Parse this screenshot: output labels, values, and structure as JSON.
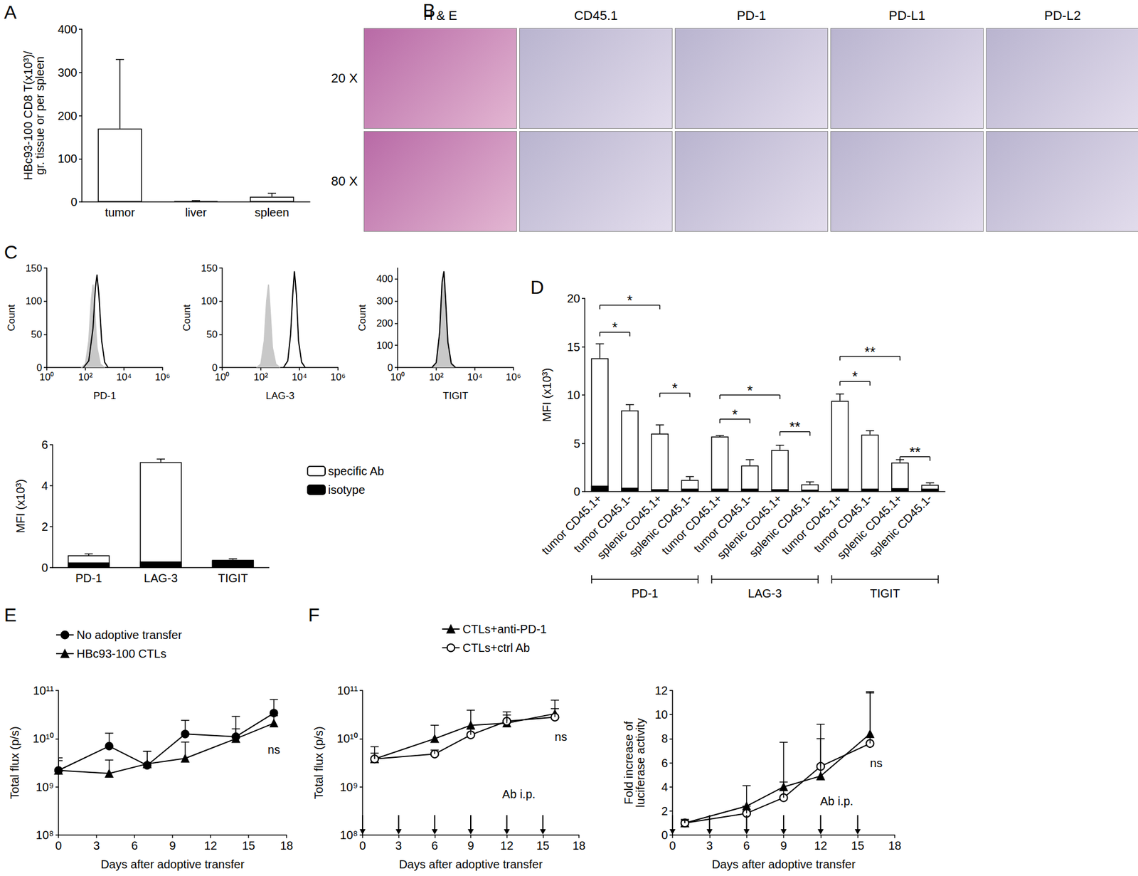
{
  "chart_data": [
    {
      "type": "bar",
      "title": "A",
      "ylabel": "HBc93-100 CD8 T(x10³)/\ngr. tissue or per spleen",
      "categories": [
        "tumor",
        "liver",
        "spleen"
      ],
      "values": [
        170,
        2,
        12
      ],
      "error": [
        160,
        1,
        8
      ],
      "color": "#ffffff",
      "ylim": [
        0,
        400
      ],
      "yticks": [
        0,
        100,
        200,
        300,
        400
      ]
    },
    {
      "type": "line",
      "title": "C",
      "log": "x",
      "xlabel": "PD-1",
      "ylabel": "Count",
      "xlim": [
        1,
        1000000
      ],
      "xticks": [
        {
          "value": 1,
          "label": "10⁰"
        },
        {
          "value": 100,
          "label": "10²"
        },
        {
          "value": 10000,
          "label": "10⁴"
        },
        {
          "value": 1000000,
          "label": "10⁶"
        }
      ],
      "ylim": [
        0,
        150
      ],
      "yticks": [
        0,
        50,
        100,
        150
      ],
      "series": [
        {
          "type": "area",
          "color": "#c8c8c8",
          "x": [
            60,
            100,
            150,
            200,
            250,
            300,
            400,
            600,
            1000
          ],
          "values": [
            0,
            5,
            40,
            100,
            125,
            90,
            30,
            5,
            0
          ]
        },
        {
          "type": "line",
          "color": "#000000",
          "x": [
            80,
            150,
            250,
            330,
            400,
            500,
            700,
            1000,
            1500
          ],
          "values": [
            0,
            10,
            60,
            120,
            140,
            110,
            40,
            8,
            0
          ]
        }
      ]
    },
    {
      "type": "line",
      "log": "x",
      "xlabel": "LAG-3",
      "ylabel": "Count",
      "xlim": [
        1,
        1000000
      ],
      "xticks": [
        {
          "value": 1,
          "label": "10⁰"
        },
        {
          "value": 100,
          "label": "10²"
        },
        {
          "value": 10000,
          "label": "10⁴"
        },
        {
          "value": 1000000,
          "label": "10⁶"
        }
      ],
      "ylim": [
        0,
        150
      ],
      "yticks": [
        0,
        50,
        100,
        150
      ],
      "series": [
        {
          "type": "area",
          "color": "#c8c8c8",
          "x": [
            60,
            100,
            150,
            200,
            250,
            300,
            400,
            600,
            1000
          ],
          "values": [
            0,
            5,
            40,
            100,
            125,
            90,
            30,
            5,
            0
          ]
        },
        {
          "type": "line",
          "color": "#000000",
          "x": [
            1500,
            2500,
            3500,
            4500,
            5500,
            7000,
            9000,
            13000,
            20000
          ],
          "values": [
            0,
            10,
            50,
            110,
            145,
            110,
            40,
            8,
            0
          ]
        }
      ]
    },
    {
      "type": "line",
      "log": "x",
      "xlabel": "TIGIT",
      "ylabel": "Count",
      "xlim": [
        1,
        1000000
      ],
      "xticks": [
        {
          "value": 1,
          "label": "10⁰"
        },
        {
          "value": 100,
          "label": "10²"
        },
        {
          "value": 10000,
          "label": "10⁴"
        },
        {
          "value": 1000000,
          "label": "10⁶"
        }
      ],
      "ylim": [
        0,
        450
      ],
      "yticks": [
        0,
        100,
        200,
        300,
        400
      ],
      "series": [
        {
          "type": "area",
          "color": "#c8c8c8",
          "x": [
            60,
            100,
            150,
            200,
            250,
            300,
            400,
            600,
            1000
          ],
          "values": [
            0,
            20,
            150,
            380,
            430,
            330,
            120,
            20,
            0
          ]
        },
        {
          "type": "line",
          "color": "#000000",
          "x": [
            60,
            100,
            150,
            200,
            250,
            300,
            400,
            600,
            1000
          ],
          "values": [
            0,
            22,
            160,
            385,
            435,
            320,
            115,
            18,
            0
          ]
        }
      ]
    },
    {
      "type": "bar",
      "ylabel": "MFI (x10³)",
      "categories": [
        "PD-1",
        "LAG-3",
        "TIGIT"
      ],
      "ylim": [
        0,
        6
      ],
      "yticks": [
        0,
        2,
        4,
        6
      ],
      "legend": "right",
      "series": [
        {
          "name": "specific Ab",
          "color": "#ffffff",
          "values": [
            0.6,
            5.15,
            0.38
          ],
          "error": [
            0.07,
            0.15,
            0.05
          ]
        },
        {
          "name": "isotype",
          "color": "#000000",
          "values": [
            0.25,
            0.3,
            0.35
          ]
        }
      ]
    },
    {
      "type": "bar",
      "title": "D",
      "ylabel": "MFI (x10³)",
      "categories": [
        "tumor CD45.1+",
        "tumor CD45.1-",
        "splenic CD45.1+",
        "splenic CD45.1-",
        "tumor CD45.1+",
        "tumor CD45.1-",
        "splenic CD45.1+",
        "splenic CD45.1-",
        "tumor CD45.1+",
        "tumor CD45.1-",
        "splenic CD45.1+",
        "splenic CD45.1-"
      ],
      "ylim": [
        0,
        20
      ],
      "yticks": [
        0,
        5,
        10,
        15,
        20
      ],
      "series": [
        {
          "name": "specific Ab",
          "color": "#ffffff",
          "values": [
            13.8,
            8.4,
            6.0,
            1.2,
            5.7,
            2.7,
            4.3,
            0.75,
            9.4,
            5.9,
            3.0,
            0.7
          ],
          "error": [
            1.5,
            0.6,
            0.9,
            0.35,
            0.1,
            0.6,
            0.5,
            0.25,
            0.7,
            0.4,
            0.3,
            0.2
          ]
        },
        {
          "name": "isotype",
          "color": "#000000",
          "values": [
            0.6,
            0.4,
            0.25,
            0.3,
            0.3,
            0.3,
            0.25,
            0.2,
            0.3,
            0.3,
            0.35,
            0.3
          ]
        }
      ],
      "comparisons": [
        {
          "from": 0,
          "to": 2,
          "level": 19.3,
          "label": "*"
        },
        {
          "from": 0,
          "to": 1,
          "level": 16.5,
          "label": "*"
        },
        {
          "from": 2,
          "to": 3,
          "level": 10.2,
          "label": "*"
        },
        {
          "from": 4,
          "to": 6,
          "level": 10.0,
          "label": "*"
        },
        {
          "from": 4,
          "to": 5,
          "level": 7.5,
          "label": "*"
        },
        {
          "from": 6,
          "to": 7,
          "level": 6.2,
          "label": "**"
        },
        {
          "from": 8,
          "to": 10,
          "level": 14.0,
          "label": "**"
        },
        {
          "from": 8,
          "to": 9,
          "level": 11.4,
          "label": "*"
        },
        {
          "from": 10,
          "to": 11,
          "level": 3.6,
          "label": "**"
        }
      ],
      "groups": [
        {
          "label": "PD-1",
          "from": 0,
          "to": 3
        },
        {
          "label": "LAG-3",
          "from": 4,
          "to": 7
        },
        {
          "label": "TIGIT",
          "from": 8,
          "to": 11
        }
      ]
    },
    {
      "type": "line",
      "title": "E",
      "log": "y",
      "xlabel": "Days after adoptive transfer",
      "ylabel": "Total flux (p/s)",
      "xlim": [
        0,
        18
      ],
      "xticks": [
        0,
        3,
        6,
        9,
        12,
        15,
        18
      ],
      "ylim": [
        100000000.0,
        100000000000.0
      ],
      "yticks": [
        {
          "value": 100000000.0,
          "label": "10⁸"
        },
        {
          "value": 1000000000.0,
          "label": "10⁹"
        },
        {
          "value": 10000000000.0,
          "label": "10¹⁰"
        },
        {
          "value": 100000000000.0,
          "label": "10¹¹"
        }
      ],
      "legend": "top",
      "series": [
        {
          "name": "No adoptive transfer",
          "color": "#000000",
          "marker": "circle",
          "x": [
            0,
            4,
            7,
            10,
            14,
            17
          ],
          "values": [
            2200000000.0,
            7000000000.0,
            2800000000.0,
            12500000000.0,
            11000000000.0,
            34000000000.0
          ],
          "error": [
            1800000000.0,
            6000000000.0,
            2700000000.0,
            11500000000.0,
            18000000000.0,
            31000000000.0
          ]
        },
        {
          "name": "HBc93-100 CTLs",
          "color": "#000000",
          "marker": "triangle",
          "x": [
            0,
            4,
            7,
            10,
            14,
            17
          ],
          "values": [
            2200000000.0,
            1900000000.0,
            3000000000.0,
            3900000000.0,
            10000000000.0,
            21000000000.0
          ],
          "error": [
            1300000000.0,
            1700000000.0,
            2500000000.0,
            4600000000.0,
            6000000000.0,
            9000000000.0
          ]
        }
      ],
      "annotations": [
        {
          "text": "ns",
          "x": 17,
          "y": 6000000000.0
        }
      ]
    },
    {
      "type": "line",
      "title": "F",
      "log": "y",
      "xlabel": "Days after adoptive transfer",
      "ylabel": "Total flux (p/s)",
      "xlim": [
        0,
        18
      ],
      "xticks": [
        0,
        3,
        6,
        9,
        12,
        15,
        18
      ],
      "ylim": [
        100000000.0,
        100000000000.0
      ],
      "yticks": [
        {
          "value": 100000000.0,
          "label": "10⁸"
        },
        {
          "value": 1000000000.0,
          "label": "10⁹"
        },
        {
          "value": 10000000000.0,
          "label": "10¹⁰"
        },
        {
          "value": 100000000000.0,
          "label": "10¹¹"
        }
      ],
      "legend": "top",
      "series": [
        {
          "name": "CTLs+anti-PD-1",
          "color": "#000000",
          "marker": "triangle",
          "x": [
            1,
            6,
            9,
            12,
            16
          ],
          "values": [
            3800000000.0,
            10000000000.0,
            19000000000.0,
            21000000000.0,
            33000000000.0
          ],
          "error": [
            3000000000.0,
            9000000000.0,
            20000000000.0,
            15000000000.0,
            30000000000.0
          ]
        },
        {
          "name": "CTLs+ctrl Ab",
          "color": "#000000",
          "marker": "open_circle",
          "x": [
            1,
            6,
            9,
            12,
            16
          ],
          "values": [
            3800000000.0,
            4800000000.0,
            12000000000.0,
            23000000000.0,
            28000000000.0
          ],
          "error": [
            1200000000.0,
            1000000000.0,
            4000000000.0,
            8000000000.0,
            14000000000.0
          ]
        }
      ],
      "annotations": [
        {
          "text": "ns",
          "x": 16.5,
          "y": 11000000000.0
        },
        {
          "text": "Ab i.p.",
          "x": 13,
          "y": 700000000.0
        }
      ],
      "injection_days": [
        0,
        3,
        6,
        9,
        12,
        15
      ]
    },
    {
      "type": "line",
      "xlabel": "Days after adoptive transfer",
      "ylabel": "Fold increase of\nluciferase activity",
      "xlim": [
        0,
        18
      ],
      "xticks": [
        0,
        3,
        6,
        9,
        12,
        15,
        18
      ],
      "ylim": [
        0,
        12
      ],
      "yticks": [
        0,
        2,
        4,
        6,
        8,
        10,
        12
      ],
      "series": [
        {
          "name": "CTLs+anti-PD-1",
          "color": "#000000",
          "marker": "triangle",
          "x": [
            1,
            6,
            9,
            12,
            16
          ],
          "values": [
            1,
            2.4,
            4,
            4.9,
            8.4
          ],
          "error": [
            0.3,
            1.7,
            3.7,
            3.1,
            3.5
          ]
        },
        {
          "name": "CTLs+ctrl Ab",
          "color": "#000000",
          "marker": "open_circle",
          "x": [
            1,
            6,
            9,
            12,
            16
          ],
          "values": [
            1,
            1.8,
            3.1,
            5.7,
            7.6
          ],
          "error": [
            0.2,
            0.6,
            1.3,
            3.5,
            4.2
          ]
        }
      ],
      "annotations": [
        {
          "text": "ns",
          "x": 16.5,
          "y": 6.0
        },
        {
          "text": "Ab i.p.",
          "x": 13.3,
          "y": 2.8
        }
      ],
      "injection_days": [
        0,
        3,
        6,
        9,
        12,
        15
      ]
    }
  ],
  "image_panel": {
    "letter": "B",
    "columns": [
      "H & E",
      "CD45.1",
      "PD-1",
      "PD-L1",
      "PD-L2"
    ],
    "rows": [
      "20 X",
      "80 X"
    ]
  }
}
